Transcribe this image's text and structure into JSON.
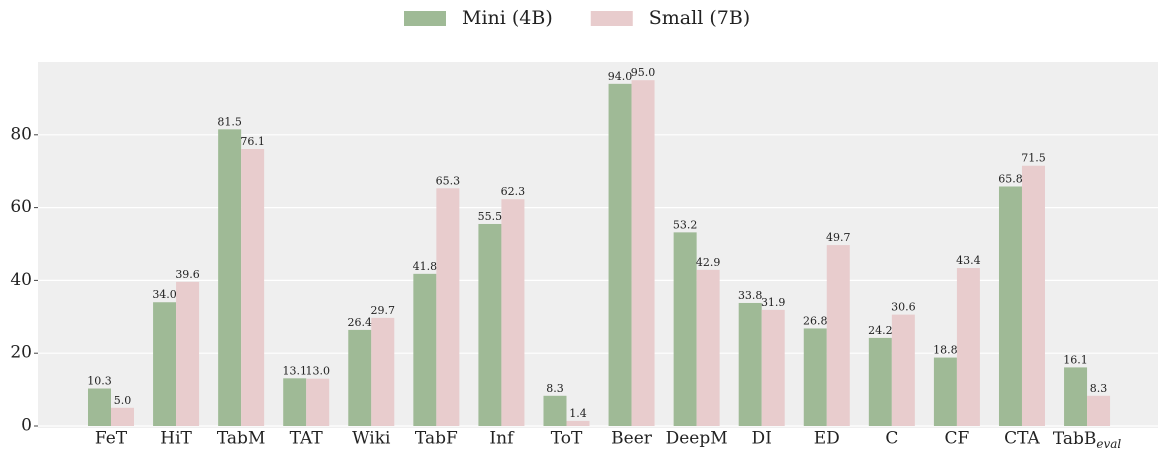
{
  "chart_data": {
    "type": "bar",
    "categories": [
      "FeT",
      "HiT",
      "TabM",
      "TAT",
      "Wiki",
      "TabF",
      "Inf",
      "ToT",
      "Beer",
      "DeepM",
      "DI",
      "ED",
      "C",
      "CF",
      "CTA",
      {
        "text": "TabB",
        "sub": "eval"
      }
    ],
    "series": [
      {
        "name": "Mini (4B)",
        "color": "#9fba96",
        "values": [
          10.3,
          34.0,
          81.5,
          13.1,
          26.4,
          41.8,
          55.5,
          8.3,
          94.0,
          53.2,
          33.8,
          26.8,
          24.2,
          18.8,
          65.8,
          16.1
        ],
        "value_labels": [
          "10.3",
          "34.0",
          "81.5",
          "13.1",
          "26.4",
          "41.8",
          "55.5",
          "8.3",
          "94.0",
          "53.2",
          "33.8",
          "26.8",
          "24.2",
          "18.8",
          "65.8",
          "16.1"
        ]
      },
      {
        "name": "Small (7B)",
        "color": "#e8cccd",
        "values": [
          5.0,
          39.6,
          76.1,
          13.0,
          29.7,
          65.3,
          62.3,
          1.4,
          95.0,
          42.9,
          31.9,
          49.7,
          30.6,
          43.4,
          71.5,
          8.3
        ],
        "value_labels": [
          "5.0",
          "39.6",
          "76.1",
          "13.0",
          "29.7",
          "65.3",
          "62.3",
          "1.4",
          "95.0",
          "42.9",
          "31.9",
          "49.7",
          "30.6",
          "43.4",
          "71.5",
          "8.3"
        ]
      }
    ],
    "ylim": [
      0,
      100
    ],
    "yticks": [
      0,
      20,
      40,
      60,
      80
    ],
    "grid": true,
    "legend": "top"
  }
}
